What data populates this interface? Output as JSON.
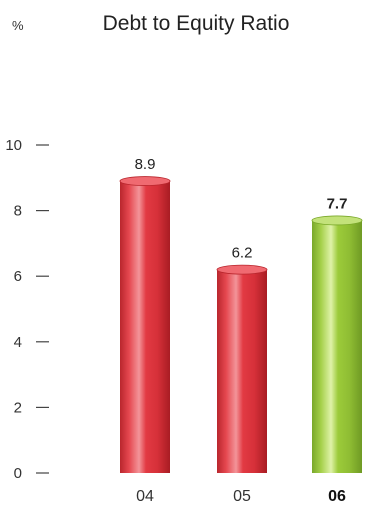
{
  "chart_data": {
    "type": "bar",
    "title": "Debt to Equity Ratio",
    "unit_label": "%",
    "categories": [
      "04",
      "05",
      "06"
    ],
    "values": [
      8.9,
      6.2,
      7.7
    ],
    "value_labels": [
      "8.9",
      "6.2",
      "7.7"
    ],
    "highlight_index": 2,
    "ylim": [
      0,
      10
    ],
    "yticks": [
      0,
      2,
      4,
      6,
      8,
      10
    ],
    "ytick_labels": [
      "0",
      "2",
      "4",
      "6",
      "8",
      "10"
    ],
    "grid": false,
    "colors": {
      "default_bar": "#e5474f",
      "highlight_bar": "#9ccb3a",
      "axis_text": "#333333"
    }
  }
}
